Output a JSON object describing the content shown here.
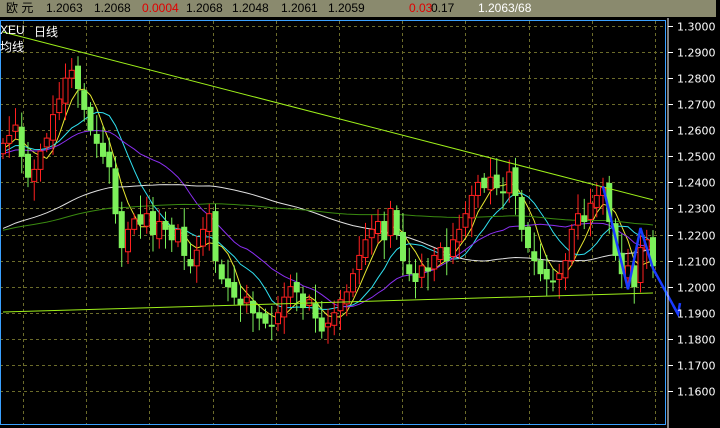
{
  "header": {
    "name": "欧  元",
    "open": "1.2063",
    "high_prev": "1.2068",
    "change": "0.0004",
    "v1": "1.2068",
    "v2": "1.2048",
    "v3": "1.2061",
    "v4": "1.2059",
    "pct": "0.03",
    "amp": "0.17",
    "bidask": "1.2063/68"
  },
  "chart_labels": {
    "symbol": "XEU",
    "period": "日线",
    "ma_label": "均线"
  },
  "colors": {
    "background": "#000000",
    "up": "#ff2020",
    "down": "#7cf05a",
    "grid": "#6b6b2a",
    "border": "#3aa0ff",
    "trendline": "#9ef01a",
    "ma5": "#e8e830",
    "ma10": "#30e0f0",
    "ma20": "#8a2ff0",
    "ma60": "#e0e0e0",
    "ma120": "#3a8a10",
    "arrow": "#1a3cff"
  },
  "chart_data": {
    "type": "candlestick",
    "title": "",
    "xlabel": "",
    "ylabel": "",
    "ylim": [
      1.155,
      1.3025
    ],
    "grid": true,
    "y_ticks": [
      "1.3000",
      "1.2900",
      "1.2800",
      "1.2700",
      "1.2600",
      "1.2500",
      "1.2400",
      "1.2300",
      "1.2200",
      "1.2100",
      "1.2000",
      "1.1900",
      "1.1800",
      "1.1700",
      "1.1600"
    ],
    "closes": [
      1.255,
      1.258,
      1.262,
      1.25,
      1.242,
      1.245,
      1.252,
      1.257,
      1.266,
      1.272,
      1.28,
      1.283,
      1.276,
      1.268,
      1.26,
      1.255,
      1.25,
      1.246,
      1.228,
      1.215,
      1.222,
      1.226,
      1.224,
      1.228,
      1.22,
      1.225,
      1.222,
      1.218,
      1.222,
      1.212,
      1.208,
      1.214,
      1.222,
      1.228,
      1.21,
      1.203,
      1.2,
      1.196,
      1.193,
      1.196,
      1.19,
      1.188,
      1.186,
      1.185,
      1.19,
      1.196,
      1.2,
      1.198,
      1.192,
      1.195,
      1.188,
      1.183,
      1.186,
      1.19,
      1.195,
      1.198,
      1.205,
      1.212,
      1.218,
      1.222,
      1.225,
      1.218,
      1.23,
      1.22,
      1.21,
      1.205,
      1.202,
      1.208,
      1.206,
      1.212,
      1.215,
      1.21,
      1.218,
      1.222,
      1.228,
      1.235,
      1.24,
      1.238,
      1.242,
      1.238,
      1.236,
      1.244,
      1.235,
      1.222,
      1.215,
      1.21,
      1.205,
      1.203,
      1.202,
      1.205,
      1.21,
      1.222,
      1.228,
      1.225,
      1.232,
      1.235,
      1.238,
      1.225,
      1.212,
      1.205,
      1.208,
      1.2,
      1.215,
      1.218,
      1.208
    ],
    "moving_averages": [
      5,
      10,
      20,
      60,
      120
    ],
    "trendlines": [
      {
        "from": [
          0,
          1.2977
        ],
        "to": [
          104,
          1.2333
        ]
      },
      {
        "from": [
          0,
          1.1903
        ],
        "to": [
          104,
          1.1976
        ]
      }
    ],
    "projection": [
      [
        96,
        1.2385
      ],
      [
        100,
        1.199
      ],
      [
        102,
        1.2225
      ],
      [
        104,
        1.207
      ],
      [
        108,
        1.1895
      ]
    ]
  }
}
